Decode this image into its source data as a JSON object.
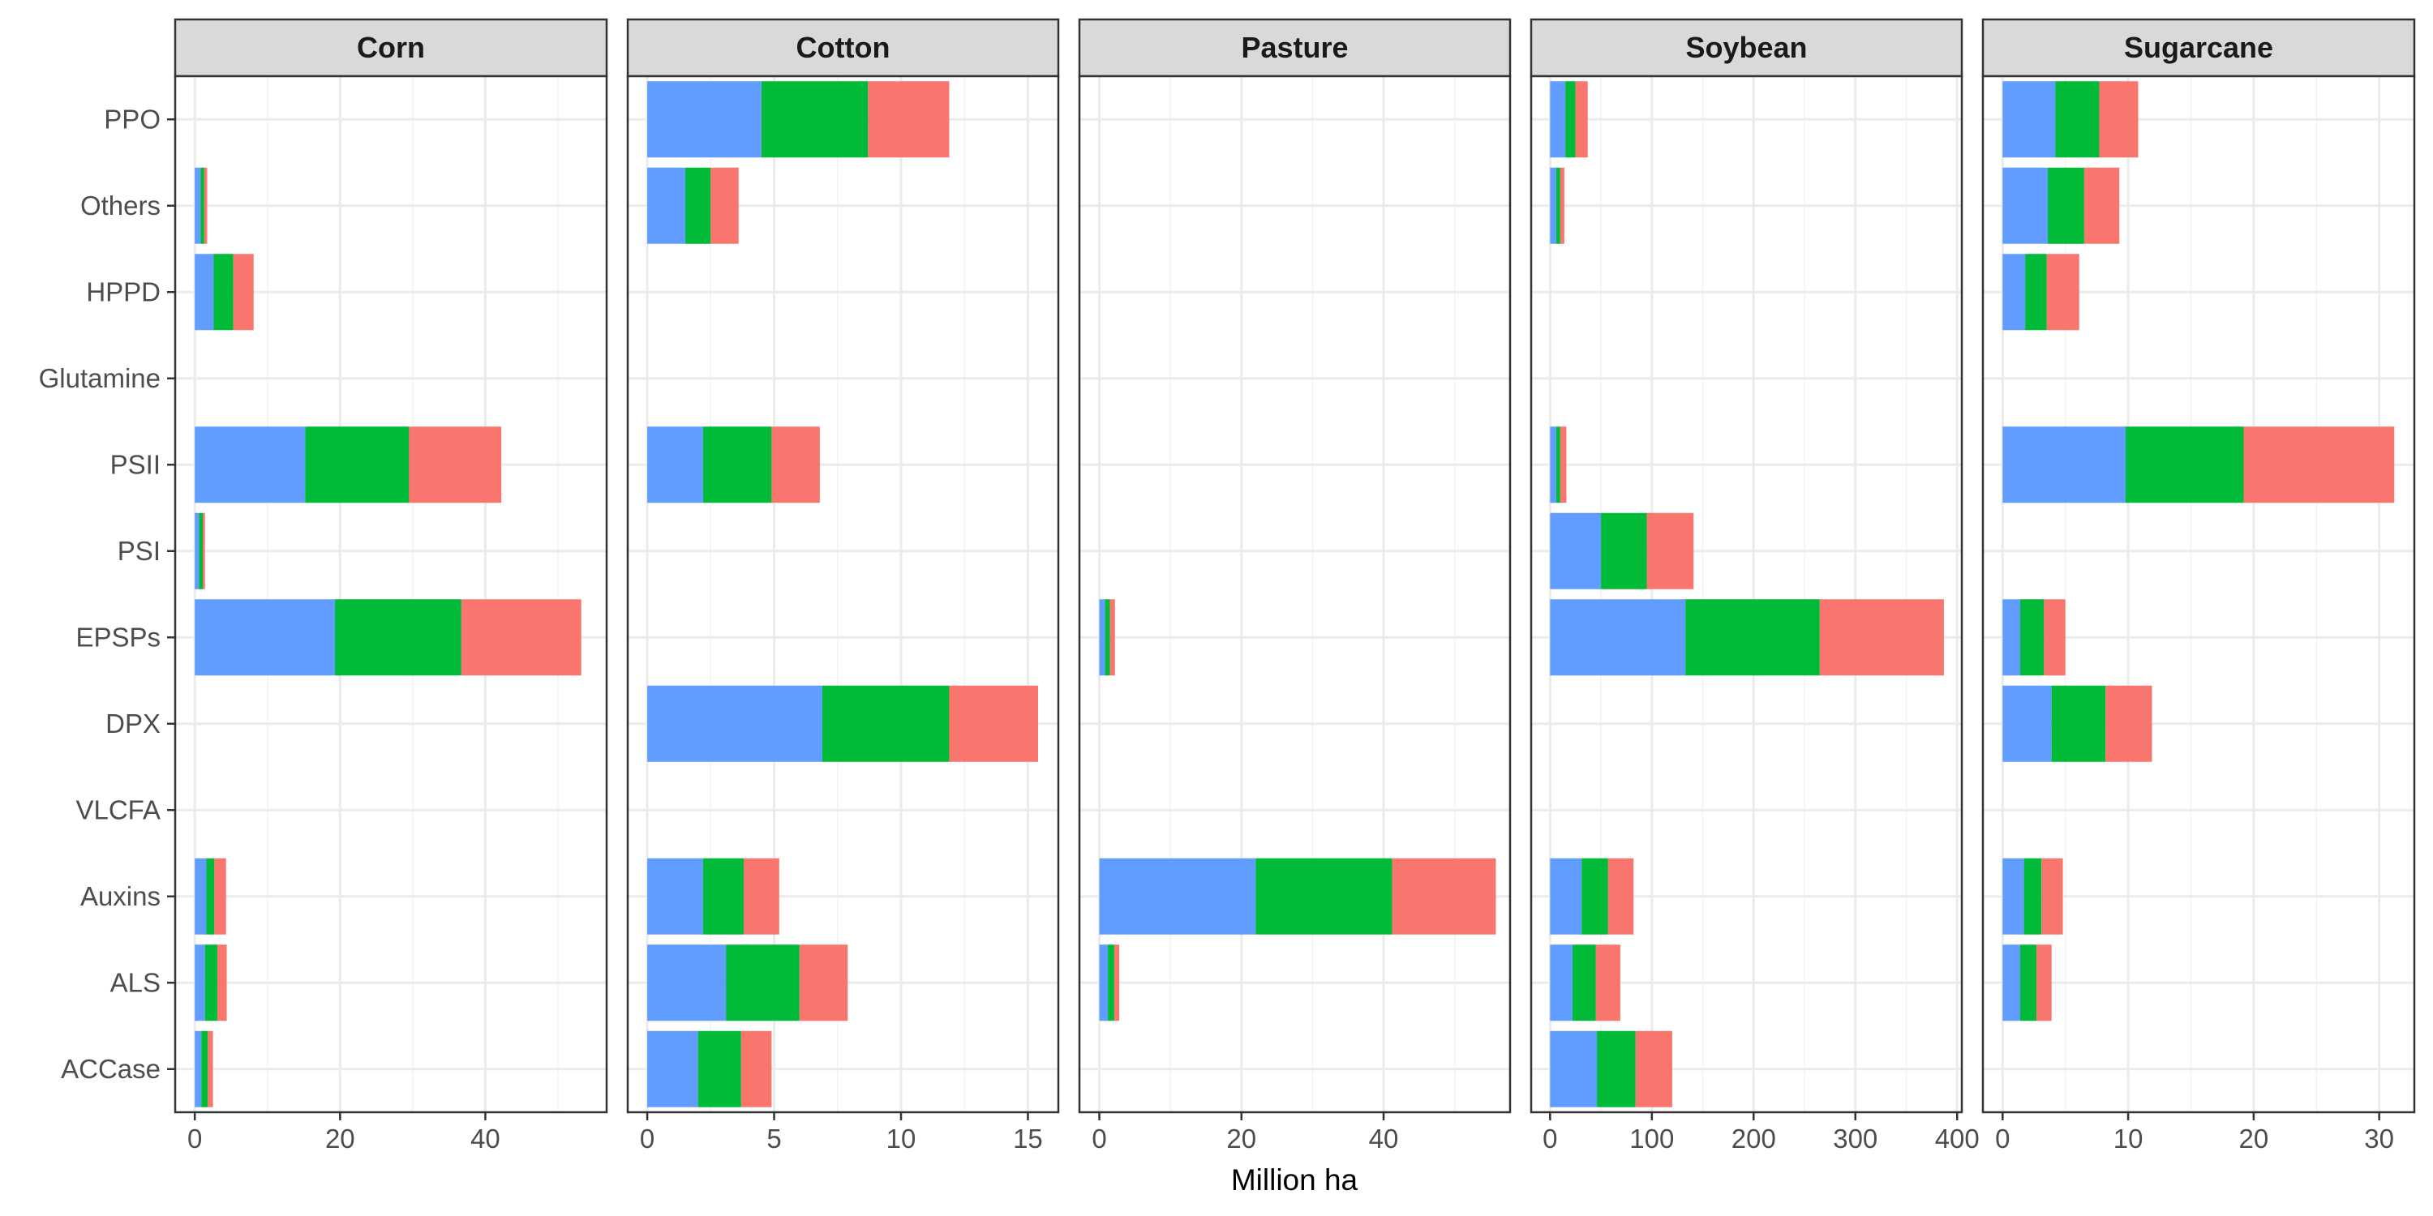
{
  "chart_data": {
    "type": "bar",
    "orientation": "horizontal",
    "stacked": true,
    "title": "",
    "xlabel": "Million ha",
    "ylabel": "",
    "grid": true,
    "legend": "none",
    "categories": [
      "PPO",
      "Others",
      "HPPD",
      "Glutamine",
      "PSII",
      "PSI",
      "EPSPs",
      "DPX",
      "VLCFA",
      "Auxins",
      "ALS",
      "ACCase"
    ],
    "series_colors": [
      "#619CFF",
      "#00BA38",
      "#F8766D"
    ],
    "panels": [
      {
        "name": "Corn",
        "xlim": [
          -2.7,
          56.7
        ],
        "xticks": [
          0,
          20,
          40
        ],
        "segments": [
          [
            0,
            0,
            0
          ],
          [
            0.8,
            0.5,
            0.4
          ],
          [
            2.6,
            2.7,
            2.8
          ],
          [
            0,
            0,
            0
          ],
          [
            15.2,
            14.3,
            12.7
          ],
          [
            0.6,
            0.5,
            0.3
          ],
          [
            19.3,
            17.4,
            16.5
          ],
          [
            0,
            0,
            0
          ],
          [
            0,
            0,
            0
          ],
          [
            1.6,
            1.1,
            1.6
          ],
          [
            1.4,
            1.7,
            1.3
          ],
          [
            0.9,
            0.9,
            0.7
          ]
        ]
      },
      {
        "name": "Cotton",
        "xlim": [
          -0.77,
          16.2
        ],
        "xticks": [
          0,
          5,
          10,
          15
        ],
        "segments": [
          [
            4.5,
            4.2,
            3.2
          ],
          [
            1.5,
            1.0,
            1.1
          ],
          [
            0,
            0,
            0
          ],
          [
            0,
            0,
            0
          ],
          [
            2.2,
            2.7,
            1.9
          ],
          [
            0,
            0,
            0
          ],
          [
            0,
            0,
            0
          ],
          [
            6.9,
            5.0,
            3.5
          ],
          [
            0,
            0,
            0
          ],
          [
            2.2,
            1.6,
            1.4
          ],
          [
            3.1,
            2.9,
            1.9
          ],
          [
            2.0,
            1.7,
            1.2
          ]
        ]
      },
      {
        "name": "Pasture",
        "xlim": [
          -2.8,
          57.8
        ],
        "xticks": [
          0,
          20,
          40
        ],
        "segments": [
          [
            0,
            0,
            0
          ],
          [
            0,
            0,
            0
          ],
          [
            0,
            0,
            0
          ],
          [
            0,
            0,
            0
          ],
          [
            0,
            0,
            0
          ],
          [
            0,
            0,
            0
          ],
          [
            0.8,
            0.7,
            0.7
          ],
          [
            0,
            0,
            0
          ],
          [
            0,
            0,
            0
          ],
          [
            22.0,
            19.2,
            14.6
          ],
          [
            1.2,
            0.9,
            0.7
          ],
          [
            0,
            0,
            0
          ]
        ]
      },
      {
        "name": "Soybean",
        "xlim": [
          -18.6,
          404.6
        ],
        "xticks": [
          0,
          100,
          200,
          300,
          400
        ],
        "segments": [
          [
            15,
            10,
            12
          ],
          [
            6,
            4,
            4
          ],
          [
            0,
            0,
            0
          ],
          [
            0,
            0,
            0
          ],
          [
            6,
            4,
            6
          ],
          [
            50,
            45,
            46
          ],
          [
            133,
            132,
            122
          ],
          [
            0,
            0,
            0
          ],
          [
            0,
            0,
            0
          ],
          [
            31,
            26,
            25
          ],
          [
            22,
            23,
            24
          ],
          [
            46,
            38,
            36
          ]
        ]
      },
      {
        "name": "Sugarcane",
        "xlim": [
          -1.57,
          32.8
        ],
        "xticks": [
          0,
          10,
          20,
          30
        ],
        "segments": [
          [
            4.2,
            3.5,
            3.1
          ],
          [
            3.6,
            2.9,
            2.8
          ],
          [
            1.8,
            1.7,
            2.6
          ],
          [
            0,
            0,
            0
          ],
          [
            9.8,
            9.4,
            12.0
          ],
          [
            0,
            0,
            0
          ],
          [
            1.4,
            1.9,
            1.7
          ],
          [
            3.9,
            4.3,
            3.7
          ],
          [
            0,
            0,
            0
          ],
          [
            1.7,
            1.4,
            1.7
          ],
          [
            1.4,
            1.3,
            1.2
          ],
          [
            0,
            0,
            0
          ]
        ]
      }
    ]
  }
}
